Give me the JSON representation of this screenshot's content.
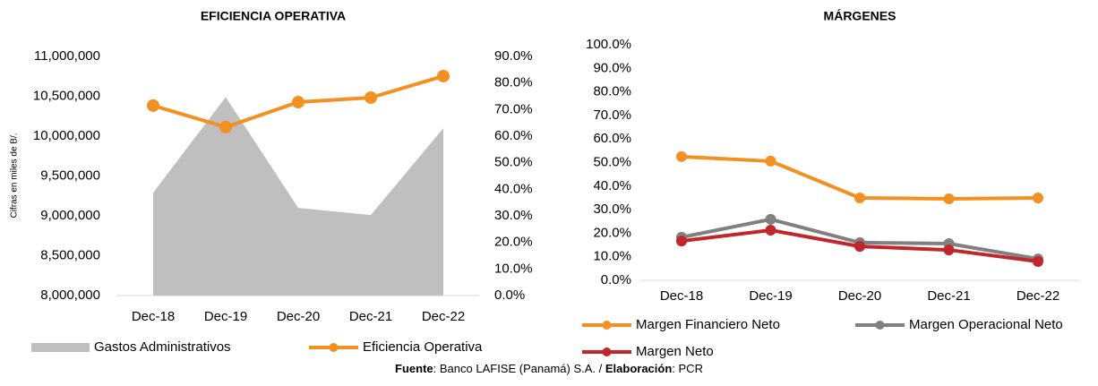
{
  "chart_data": [
    {
      "type": "combo",
      "title": "EFICIENCIA OPERATIVA",
      "y_label": "Cifras en miles de B/.",
      "categories": [
        "Dec-18",
        "Dec-19",
        "Dec-20",
        "Dec-21",
        "Dec-22"
      ],
      "series": [
        {
          "name": "Gastos Administrativos",
          "kind": "area",
          "color": "#bfbfbf",
          "values": [
            9290000,
            10490000,
            9100000,
            9010000,
            10100000
          ]
        },
        {
          "name": "Eficiencia Operativa",
          "kind": "line",
          "axis": "y2",
          "color": "#f39021",
          "values": [
            71.5,
            63.4,
            72.8,
            74.5,
            82.6
          ]
        }
      ],
      "ylim": [
        8000000,
        11000000
      ],
      "yticks": [
        {
          "value": 8000000,
          "label": "8,000,000"
        },
        {
          "value": 8500000,
          "label": "8,500,000"
        },
        {
          "value": 9000000,
          "label": "9,000,000"
        },
        {
          "value": 9500000,
          "label": "9,500,000"
        },
        {
          "value": 10000000,
          "label": "10,000,000"
        },
        {
          "value": 10500000,
          "label": "10,500,000"
        },
        {
          "value": 11000000,
          "label": "11,000,000"
        }
      ],
      "y2lim": [
        0,
        90
      ],
      "y2ticks": [
        {
          "value": 0,
          "label": "0.0%"
        },
        {
          "value": 10,
          "label": "10.0%"
        },
        {
          "value": 20,
          "label": "20.0%"
        },
        {
          "value": 30,
          "label": "30.0%"
        },
        {
          "value": 40,
          "label": "40.0%"
        },
        {
          "value": 50,
          "label": "50.0%"
        },
        {
          "value": 60,
          "label": "60.0%"
        },
        {
          "value": 70,
          "label": "70.0%"
        },
        {
          "value": 80,
          "label": "80.0%"
        },
        {
          "value": 90,
          "label": "90.0%"
        }
      ],
      "legend": "bottom"
    },
    {
      "type": "line",
      "title": "MÁRGENES",
      "categories": [
        "Dec-18",
        "Dec-19",
        "Dec-20",
        "Dec-21",
        "Dec-22"
      ],
      "series": [
        {
          "name": "Margen Financiero Neto",
          "color": "#f39021",
          "values": [
            52.5,
            50.6,
            35.0,
            34.6,
            35.0
          ]
        },
        {
          "name": "Margen Operacional Neto",
          "color": "#808080",
          "values": [
            18.3,
            25.9,
            16.0,
            15.6,
            9.1
          ]
        },
        {
          "name": "Margen Neto",
          "color": "#c0272d",
          "values": [
            16.7,
            21.3,
            14.4,
            12.9,
            8.0
          ]
        }
      ],
      "ylim": [
        0,
        100
      ],
      "yticks": [
        {
          "value": 0,
          "label": "0.0%"
        },
        {
          "value": 10,
          "label": "10.0%"
        },
        {
          "value": 20,
          "label": "20.0%"
        },
        {
          "value": 30,
          "label": "30.0%"
        },
        {
          "value": 40,
          "label": "40.0%"
        },
        {
          "value": 50,
          "label": "50.0%"
        },
        {
          "value": 60,
          "label": "60.0%"
        },
        {
          "value": 70,
          "label": "70.0%"
        },
        {
          "value": 80,
          "label": "80.0%"
        },
        {
          "value": 90,
          "label": "90.0%"
        },
        {
          "value": 100,
          "label": "100.0%"
        }
      ],
      "legend": "bottom"
    }
  ],
  "footer": [
    {
      "text": "Fuente",
      "bold": true
    },
    {
      "text": ": Banco LAFISE (Panamá) S.A. / "
    },
    {
      "text": "Elaboración",
      "bold": true
    },
    {
      "text": ": PCR"
    }
  ]
}
